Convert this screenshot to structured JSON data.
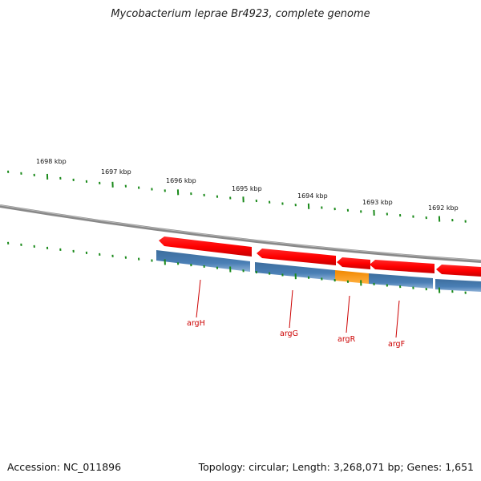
{
  "title": "Mycobacterium leprae Br4923, complete genome",
  "footer": {
    "accession": "Accession: NC_011896",
    "summary": "Topology: circular; Length: 3,268,071 bp; Genes: 1,651"
  },
  "ruler": {
    "unit": "kbp",
    "ticks": [
      {
        "kbp": 1698,
        "label": "1698 kbp"
      },
      {
        "kbp": 1697,
        "label": "1697 kbp"
      },
      {
        "kbp": 1696,
        "label": "1696 kbp"
      },
      {
        "kbp": 1695,
        "label": "1695 kbp"
      },
      {
        "kbp": 1694,
        "label": "1694 kbp"
      },
      {
        "kbp": 1693,
        "label": "1693 kbp"
      },
      {
        "kbp": 1692,
        "label": "1692 kbp"
      }
    ]
  },
  "features": {
    "outer_track": [
      {
        "type": "CDS",
        "color": "#ff0000",
        "strand": "minus"
      },
      {
        "type": "CDS",
        "color": "#ff0000",
        "strand": "minus"
      },
      {
        "type": "CDS",
        "color": "#ff0000",
        "strand": "minus"
      },
      {
        "type": "CDS",
        "color": "#ff0000",
        "strand": "minus"
      },
      {
        "type": "CDS",
        "color": "#ff0000",
        "strand": "minus"
      }
    ],
    "inner_track": [
      {
        "gene": "argH",
        "color": "#4a7fb5"
      },
      {
        "gene": "argG",
        "color": "#4a7fb5"
      },
      {
        "gene": "argR",
        "color": "#ff9900"
      },
      {
        "gene": "argF",
        "color": "#4a7fb5"
      },
      {
        "gene": "",
        "color": "#4a7fb5"
      }
    ]
  },
  "gene_labels": [
    "argH",
    "argG",
    "argR",
    "argF"
  ]
}
